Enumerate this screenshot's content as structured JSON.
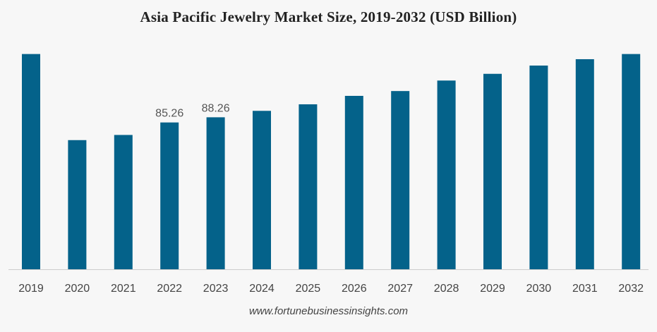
{
  "chart_data": {
    "type": "bar",
    "title": "Asia Pacific Jewelry Market Size, 2019-2032 (USD Billion)",
    "xlabel": "",
    "ylabel": "",
    "categories": [
      "2019",
      "2020",
      "2021",
      "2022",
      "2023",
      "2024",
      "2025",
      "2026",
      "2027",
      "2028",
      "2029",
      "2030",
      "2031",
      "2032"
    ],
    "values": [
      125.0,
      75.0,
      78.0,
      85.26,
      88.26,
      92.0,
      95.8,
      100.7,
      103.5,
      109.6,
      113.5,
      118.3,
      122.0,
      125.0
    ],
    "data_labels": [
      "",
      "",
      "",
      "85.26",
      "88.26",
      "",
      "",
      "",
      "",
      "",
      "",
      "",
      "",
      ""
    ],
    "ylim": [
      0,
      140
    ],
    "bar_color": "#04628a",
    "grid": false,
    "legend": "none"
  },
  "source": "www.fortunebusinessinsights.com"
}
